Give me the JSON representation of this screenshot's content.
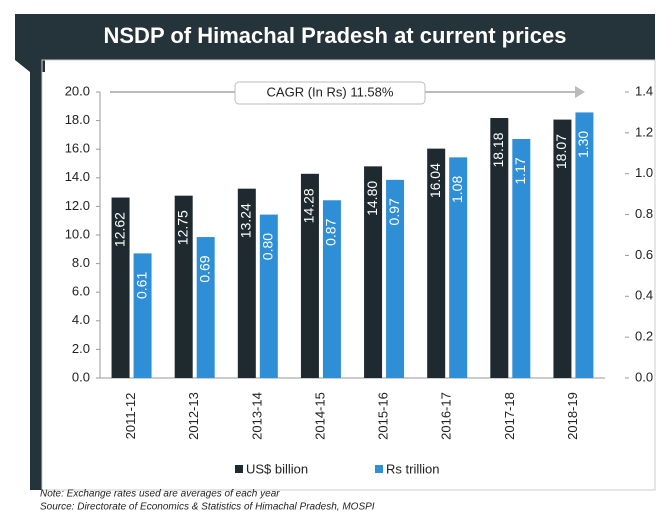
{
  "chart_data": {
    "type": "bar",
    "title": "NSDP of Himachal Pradesh at current prices",
    "annotation": "CAGR (In Rs) 11.58%",
    "note": "Note: Exchange rates used are averages of each year",
    "source": "Source: Directorate of Economics & Statistics of Himachal Pradesh, MOSPI",
    "categories": [
      "2011-12",
      "2012-13",
      "2013-14",
      "2014-15",
      "2015-16",
      "2016-17",
      "2017-18",
      "2018-19"
    ],
    "series": [
      {
        "name": "US$ billion",
        "color": "#1e2a30",
        "values": [
          12.62,
          12.75,
          13.24,
          14.28,
          14.8,
          16.04,
          18.18,
          18.07
        ],
        "value_labels": [
          "12.62",
          "12.75",
          "13.24",
          "14.28",
          "14.80",
          "16.04",
          "18.18",
          "18.07"
        ]
      },
      {
        "name": "Rs trillion",
        "color": "#2f8fd6",
        "axis": "y2",
        "values": [
          0.61,
          0.69,
          0.8,
          0.87,
          0.97,
          1.08,
          1.17,
          1.3
        ],
        "value_labels": [
          "0.61",
          "0.69",
          "0.80",
          "0.87",
          "0.97",
          "1.08",
          "1.17",
          "1.30"
        ]
      }
    ],
    "ylim": [
      0,
      20
    ],
    "yticks": [
      {
        "value": 0,
        "label": "0.0"
      },
      {
        "value": 2,
        "label": "2.0"
      },
      {
        "value": 4,
        "label": "4.0"
      },
      {
        "value": 6,
        "label": "6.0"
      },
      {
        "value": 8,
        "label": "8.0"
      },
      {
        "value": 10,
        "label": "10.0"
      },
      {
        "value": 12,
        "label": "12.0"
      },
      {
        "value": 14,
        "label": "14.0"
      },
      {
        "value": 16,
        "label": "16.0"
      },
      {
        "value": 18,
        "label": "18.0"
      },
      {
        "value": 20,
        "label": "20.0"
      }
    ],
    "y2lim": [
      0,
      1.4
    ],
    "y2ticks": [
      {
        "value": 0,
        "label": "0.0"
      },
      0.2,
      0.4,
      0.6,
      0.8,
      {
        "value": 1,
        "label": "1.0"
      },
      1.2,
      1.4
    ],
    "legend": "bottom"
  }
}
